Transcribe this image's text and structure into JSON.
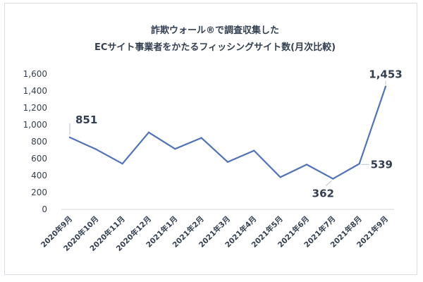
{
  "chart_data": {
    "type": "line",
    "title": "詐欺ウォール®で調査収集した",
    "subtitle": "ECサイト事業者をかたるフィッシングサイト数(月次比較)",
    "categories": [
      "2020年9月",
      "2020年10月",
      "2020年11月",
      "2020年12月",
      "2021年1月",
      "2021年2月",
      "2021年3月",
      "2021年4月",
      "2021年5月",
      "2021年6月",
      "2021年7月",
      "2021年8月",
      "2021年9月"
    ],
    "series": [
      {
        "values": [
          851,
          710,
          540,
          910,
          715,
          845,
          560,
          695,
          380,
          530,
          362,
          539,
          1453
        ]
      }
    ],
    "data_labels": [
      {
        "index": 0,
        "text": "851"
      },
      {
        "index": 10,
        "text": "362"
      },
      {
        "index": 11,
        "text": "539"
      },
      {
        "index": 12,
        "text": "1,453"
      }
    ],
    "ylim": [
      0,
      1600
    ],
    "yticks": [
      0,
      200,
      400,
      600,
      800,
      1000,
      1200,
      1400,
      1600
    ],
    "ytick_labels": [
      "0",
      "200",
      "400",
      "600",
      "800",
      "1,000",
      "1,200",
      "1,400",
      "1,600"
    ],
    "xlabel": "",
    "ylabel": "",
    "grid": false,
    "line_color": "#4f72b8",
    "text_color": "#333f50"
  }
}
